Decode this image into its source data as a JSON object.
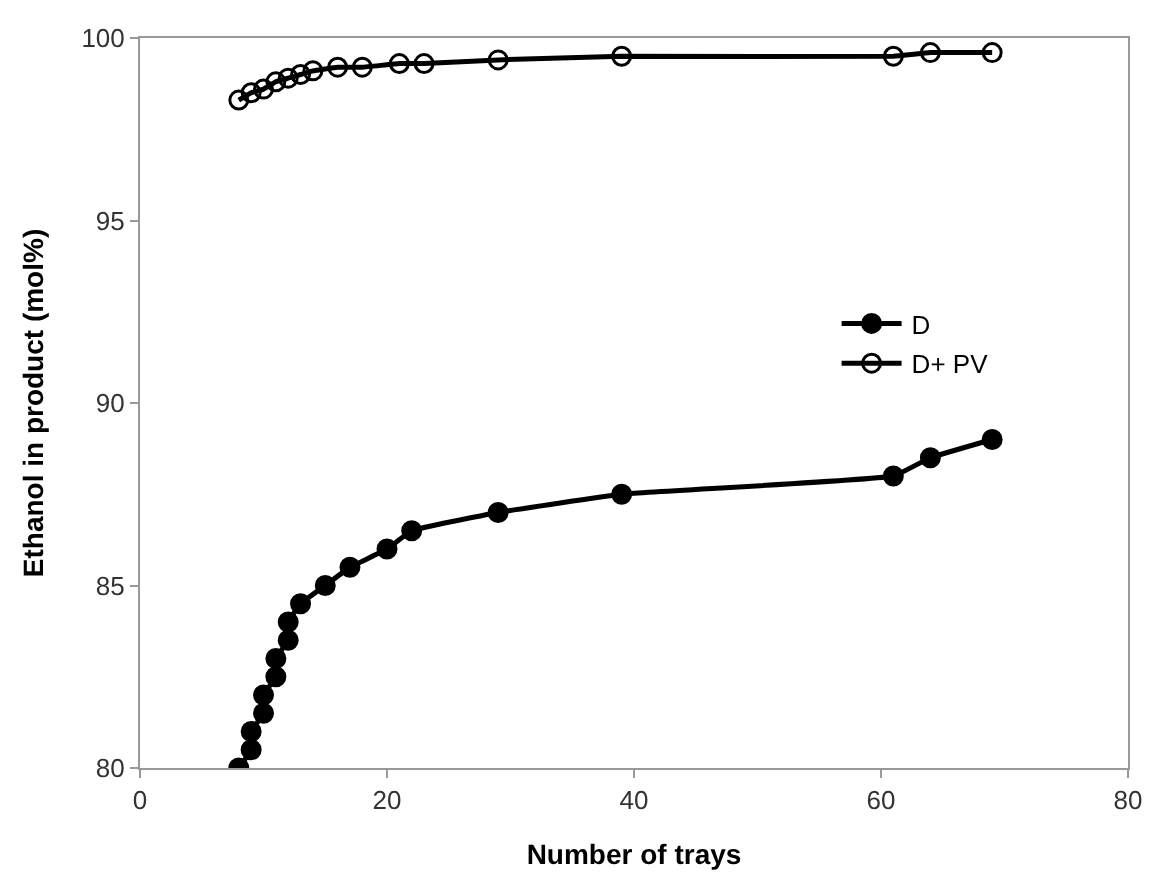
{
  "chart_data": {
    "type": "line",
    "xlabel": "Number of trays",
    "ylabel": "Ethanol in product (mol%)",
    "xlim": [
      0,
      80
    ],
    "xticks": [
      0,
      20,
      40,
      60,
      80
    ],
    "ylim": [
      80,
      100
    ],
    "yticks": [
      80,
      85,
      90,
      95,
      100
    ],
    "legend": "right",
    "line_style": "solid",
    "series": [
      {
        "name": "D",
        "color": "#000000",
        "marker": "circle",
        "x": [
          8,
          9,
          9,
          10,
          10,
          11,
          11,
          12,
          12,
          13,
          15,
          17,
          20,
          22,
          29,
          39,
          61,
          64,
          69
        ],
        "values": [
          80,
          80.5,
          81,
          81.5,
          82,
          82.5,
          83,
          83.5,
          84,
          84.5,
          85,
          85.5,
          86,
          86.5,
          87,
          87.5,
          88,
          88.5,
          89
        ]
      },
      {
        "name": "D+ PV",
        "color": "#000000",
        "marker": "circle-open",
        "x": [
          8,
          9,
          10,
          11,
          12,
          13,
          14,
          16,
          18,
          21,
          23,
          29,
          39,
          61,
          64,
          69
        ],
        "values": [
          98.3,
          98.5,
          98.6,
          98.8,
          98.9,
          99.0,
          99.1,
          99.2,
          99.2,
          99.3,
          99.3,
          99.4,
          99.5,
          99.5,
          99.6,
          99.6
        ]
      }
    ]
  }
}
